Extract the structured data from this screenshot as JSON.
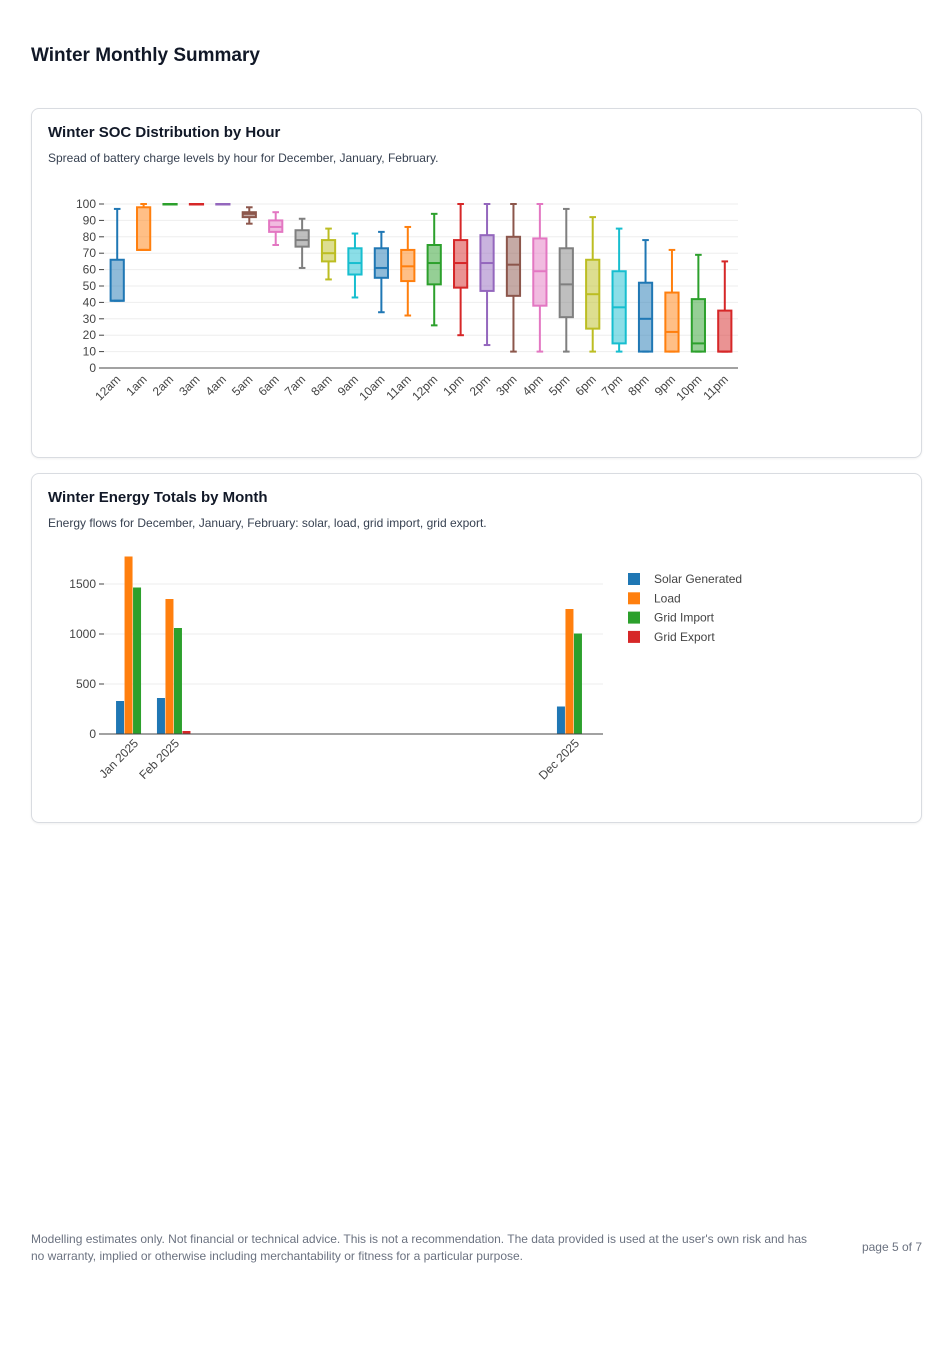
{
  "page": {
    "title": "Winter Monthly Summary",
    "footer_disclaimer": "Modelling estimates only. Not financial or technical advice. This is not a recommendation. The data provided is used at the user's own risk and has no warranty, implied or otherwise including merchantability or fitness for a particular purpose.",
    "page_number": "page 5 of 7"
  },
  "soc_card": {
    "title": "Winter SOC Distribution by Hour",
    "description": "Spread of battery charge levels by hour for December, January, February."
  },
  "energy_card": {
    "title": "Winter Energy Totals by Month",
    "description": "Energy flows for December, January, February: solar, load, grid import, grid export."
  },
  "chart_data": [
    {
      "type": "box",
      "title": "",
      "xlabel": "",
      "ylabel": "",
      "ylim": [
        0,
        100
      ],
      "yticks": [
        0,
        10,
        20,
        30,
        40,
        50,
        60,
        70,
        80,
        90,
        100
      ],
      "grid": true,
      "categories": [
        "12am",
        "1am",
        "2am",
        "3am",
        "4am",
        "5am",
        "6am",
        "7am",
        "8am",
        "9am",
        "10am",
        "11am",
        "12pm",
        "1pm",
        "2pm",
        "3pm",
        "4pm",
        "5pm",
        "6pm",
        "7pm",
        "8pm",
        "9pm",
        "10pm",
        "11pm"
      ],
      "colors": [
        "#1f77b4",
        "#ff7f0e",
        "#2ca02c",
        "#d62728",
        "#9467bd",
        "#8c564b",
        "#e377c2",
        "#7f7f7f",
        "#bcbd22",
        "#17becf",
        "#1f77b4",
        "#ff7f0e",
        "#2ca02c",
        "#d62728",
        "#9467bd",
        "#8c564b",
        "#e377c2",
        "#7f7f7f",
        "#bcbd22",
        "#17becf",
        "#1f77b4",
        "#ff7f0e",
        "#2ca02c",
        "#d62728"
      ],
      "boxes": [
        {
          "min": 41,
          "q1": 41,
          "median": 41,
          "q3": 66,
          "max": 97
        },
        {
          "min": 72,
          "q1": 72,
          "median": 72,
          "q3": 98,
          "max": 100
        },
        {
          "min": 100,
          "q1": 100,
          "median": 100,
          "q3": 100,
          "max": 100
        },
        {
          "min": 100,
          "q1": 100,
          "median": 100,
          "q3": 100,
          "max": 100
        },
        {
          "min": 100,
          "q1": 100,
          "median": 100,
          "q3": 100,
          "max": 100
        },
        {
          "min": 88,
          "q1": 92,
          "median": 94,
          "q3": 95,
          "max": 98
        },
        {
          "min": 75,
          "q1": 83,
          "median": 86,
          "q3": 90,
          "max": 95
        },
        {
          "min": 61,
          "q1": 74,
          "median": 78,
          "q3": 84,
          "max": 91
        },
        {
          "min": 54,
          "q1": 65,
          "median": 70,
          "q3": 78,
          "max": 85
        },
        {
          "min": 43,
          "q1": 57,
          "median": 64,
          "q3": 73,
          "max": 82
        },
        {
          "min": 34,
          "q1": 55,
          "median": 61,
          "q3": 73,
          "max": 83
        },
        {
          "min": 32,
          "q1": 53,
          "median": 62,
          "q3": 72,
          "max": 86
        },
        {
          "min": 26,
          "q1": 51,
          "median": 64,
          "q3": 75,
          "max": 94
        },
        {
          "min": 20,
          "q1": 49,
          "median": 64,
          "q3": 78,
          "max": 100
        },
        {
          "min": 14,
          "q1": 47,
          "median": 64,
          "q3": 81,
          "max": 100
        },
        {
          "min": 10,
          "q1": 44,
          "median": 63,
          "q3": 80,
          "max": 100
        },
        {
          "min": 10,
          "q1": 38,
          "median": 59,
          "q3": 79,
          "max": 100
        },
        {
          "min": 10,
          "q1": 31,
          "median": 51,
          "q3": 73,
          "max": 97
        },
        {
          "min": 10,
          "q1": 24,
          "median": 45,
          "q3": 66,
          "max": 92
        },
        {
          "min": 10,
          "q1": 15,
          "median": 37,
          "q3": 59,
          "max": 85
        },
        {
          "min": 10,
          "q1": 10,
          "median": 30,
          "q3": 52,
          "max": 78
        },
        {
          "min": 10,
          "q1": 10,
          "median": 22,
          "q3": 46,
          "max": 72
        },
        {
          "min": 10,
          "q1": 10,
          "median": 15,
          "q3": 42,
          "max": 69
        },
        {
          "min": 10,
          "q1": 10,
          "median": 10,
          "q3": 35,
          "max": 65
        }
      ]
    },
    {
      "type": "bar",
      "title": "",
      "xlabel": "",
      "ylabel": "",
      "x_axis": "date",
      "ylim": [
        0,
        1800
      ],
      "yticks": [
        0,
        500,
        1000,
        1500
      ],
      "grid": true,
      "legend_position": "top-right",
      "categories": [
        "Jan 2025",
        "Feb 2025",
        "Dec 2025"
      ],
      "category_dates": [
        "2025-01-01",
        "2025-02-01",
        "2025-12-01"
      ],
      "x_range": [
        "2024-12-10",
        "2025-12-23"
      ],
      "series": [
        {
          "name": "Solar Generated",
          "color": "#1f77b4",
          "values": [
            330,
            360,
            275
          ]
        },
        {
          "name": "Load",
          "color": "#ff7f0e",
          "values": [
            1775,
            1350,
            1250
          ]
        },
        {
          "name": "Grid Import",
          "color": "#2ca02c",
          "values": [
            1465,
            1060,
            1005
          ]
        },
        {
          "name": "Grid Export",
          "color": "#d62728",
          "values": [
            0,
            30,
            0
          ]
        }
      ]
    }
  ]
}
